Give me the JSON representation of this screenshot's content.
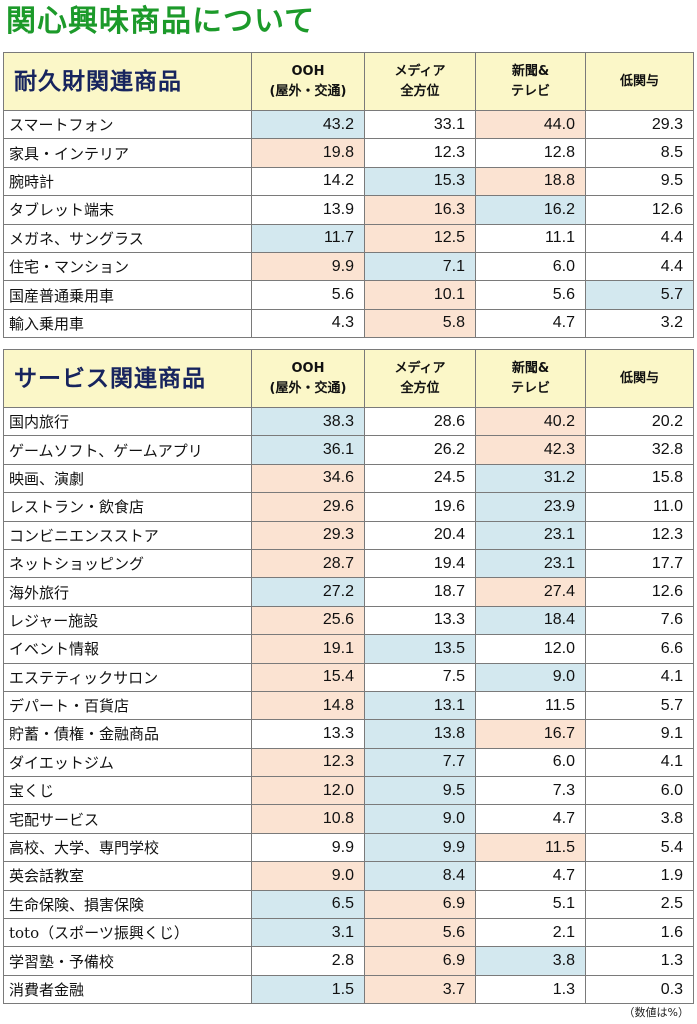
{
  "title": "関心興味商品について",
  "columns": {
    "ooh_line1": "OOH",
    "ooh_line2": "(屋外・交通)",
    "media_line1": "メディア",
    "media_line2": "全方位",
    "news_line1": "新聞&",
    "news_line2": "テレビ",
    "low": "低関与"
  },
  "colors": {
    "title": "#1c9a2a",
    "header_bg": "#fbf7c8",
    "category": "#17245e",
    "highlight_blue": "#d3e8ef",
    "highlight_pink": "#fbe3d2"
  },
  "durable": {
    "category": "耐久財関連商品",
    "rows": [
      {
        "name": "スマートフォン",
        "v": [
          "43.2",
          "33.1",
          "44.0",
          "29.3"
        ],
        "hl": [
          "b",
          "",
          "p",
          ""
        ]
      },
      {
        "name": "家具・インテリア",
        "v": [
          "19.8",
          "12.3",
          "12.8",
          "8.5"
        ],
        "hl": [
          "p",
          "",
          "",
          ""
        ]
      },
      {
        "name": "腕時計",
        "v": [
          "14.2",
          "15.3",
          "18.8",
          "9.5"
        ],
        "hl": [
          "",
          "b",
          "p",
          ""
        ]
      },
      {
        "name": "タブレット端末",
        "v": [
          "13.9",
          "16.3",
          "16.2",
          "12.6"
        ],
        "hl": [
          "",
          "p",
          "b",
          ""
        ]
      },
      {
        "name": "メガネ、サングラス",
        "v": [
          "11.7",
          "12.5",
          "11.1",
          "4.4"
        ],
        "hl": [
          "b",
          "p",
          "",
          ""
        ]
      },
      {
        "name": "住宅・マンション",
        "v": [
          "9.9",
          "7.1",
          "6.0",
          "4.4"
        ],
        "hl": [
          "p",
          "b",
          "",
          ""
        ]
      },
      {
        "name": "国産普通乗用車",
        "v": [
          "5.6",
          "10.1",
          "5.6",
          "5.7"
        ],
        "hl": [
          "",
          "p",
          "",
          "b"
        ]
      },
      {
        "name": "輸入乗用車",
        "v": [
          "4.3",
          "5.8",
          "4.7",
          "3.2"
        ],
        "hl": [
          "",
          "p",
          "",
          ""
        ]
      }
    ]
  },
  "service": {
    "category": "サービス関連商品",
    "rows": [
      {
        "name": "国内旅行",
        "v": [
          "38.3",
          "28.6",
          "40.2",
          "20.2"
        ],
        "hl": [
          "b",
          "",
          "p",
          ""
        ]
      },
      {
        "name": "ゲームソフト、ゲームアプリ",
        "v": [
          "36.1",
          "26.2",
          "42.3",
          "32.8"
        ],
        "hl": [
          "b",
          "",
          "p",
          ""
        ]
      },
      {
        "name": "映画、演劇",
        "v": [
          "34.6",
          "24.5",
          "31.2",
          "15.8"
        ],
        "hl": [
          "p",
          "",
          "b",
          ""
        ]
      },
      {
        "name": "レストラン・飲食店",
        "v": [
          "29.6",
          "19.6",
          "23.9",
          "11.0"
        ],
        "hl": [
          "p",
          "",
          "b",
          ""
        ]
      },
      {
        "name": "コンビニエンスストア",
        "v": [
          "29.3",
          "20.4",
          "23.1",
          "12.3"
        ],
        "hl": [
          "p",
          "",
          "b",
          ""
        ]
      },
      {
        "name": "ネットショッピング",
        "v": [
          "28.7",
          "19.4",
          "23.1",
          "17.7"
        ],
        "hl": [
          "p",
          "",
          "b",
          ""
        ]
      },
      {
        "name": "海外旅行",
        "v": [
          "27.2",
          "18.7",
          "27.4",
          "12.6"
        ],
        "hl": [
          "b",
          "",
          "p",
          ""
        ]
      },
      {
        "name": "レジャー施設",
        "v": [
          "25.6",
          "13.3",
          "18.4",
          "7.6"
        ],
        "hl": [
          "p",
          "",
          "b",
          ""
        ]
      },
      {
        "name": "イベント情報",
        "v": [
          "19.1",
          "13.5",
          "12.0",
          "6.6"
        ],
        "hl": [
          "p",
          "b",
          "",
          ""
        ]
      },
      {
        "name": "エステティックサロン",
        "v": [
          "15.4",
          "7.5",
          "9.0",
          "4.1"
        ],
        "hl": [
          "p",
          "",
          "b",
          ""
        ]
      },
      {
        "name": "デパート・百貨店",
        "v": [
          "14.8",
          "13.1",
          "11.5",
          "5.7"
        ],
        "hl": [
          "p",
          "b",
          "",
          ""
        ]
      },
      {
        "name": "貯蓄・債権・金融商品",
        "v": [
          "13.3",
          "13.8",
          "16.7",
          "9.1"
        ],
        "hl": [
          "",
          "b",
          "p",
          ""
        ]
      },
      {
        "name": "ダイエットジム",
        "v": [
          "12.3",
          "7.7",
          "6.0",
          "4.1"
        ],
        "hl": [
          "p",
          "b",
          "",
          ""
        ]
      },
      {
        "name": "宝くじ",
        "v": [
          "12.0",
          "9.5",
          "7.3",
          "6.0"
        ],
        "hl": [
          "p",
          "b",
          "",
          ""
        ]
      },
      {
        "name": "宅配サービス",
        "v": [
          "10.8",
          "9.0",
          "4.7",
          "3.8"
        ],
        "hl": [
          "p",
          "b",
          "",
          ""
        ]
      },
      {
        "name": "高校、大学、専門学校",
        "v": [
          "9.9",
          "9.9",
          "11.5",
          "5.4"
        ],
        "hl": [
          "",
          "b",
          "p",
          ""
        ]
      },
      {
        "name": "英会話教室",
        "v": [
          "9.0",
          "8.4",
          "4.7",
          "1.9"
        ],
        "hl": [
          "p",
          "b",
          "",
          ""
        ]
      },
      {
        "name": "生命保険、損害保険",
        "v": [
          "6.5",
          "6.9",
          "5.1",
          "2.5"
        ],
        "hl": [
          "b",
          "p",
          "",
          ""
        ]
      },
      {
        "name": "toto（スポーツ振興くじ）",
        "v": [
          "3.1",
          "5.6",
          "2.1",
          "1.6"
        ],
        "hl": [
          "b",
          "p",
          "",
          ""
        ]
      },
      {
        "name": "学習塾・予備校",
        "v": [
          "2.8",
          "6.9",
          "3.8",
          "1.3"
        ],
        "hl": [
          "",
          "p",
          "b",
          ""
        ]
      },
      {
        "name": "消費者金融",
        "v": [
          "1.5",
          "3.7",
          "1.3",
          "0.3"
        ],
        "hl": [
          "b",
          "p",
          "",
          ""
        ]
      }
    ]
  },
  "note": "（数値は%）"
}
